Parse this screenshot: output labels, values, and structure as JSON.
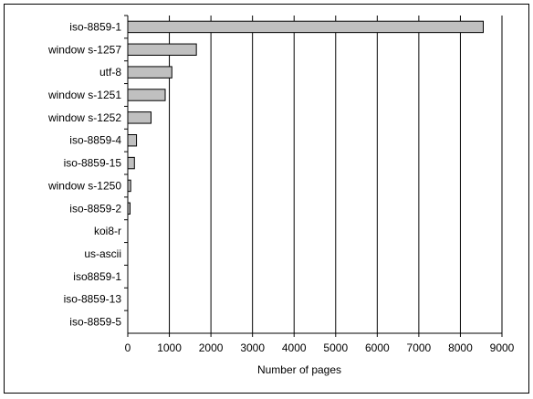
{
  "chart_data": {
    "type": "bar",
    "orientation": "horizontal",
    "categories": [
      "iso-8859-1",
      "window s-1257",
      "utf-8",
      "window s-1251",
      "window s-1252",
      "iso-8859-4",
      "iso-8859-15",
      "window s-1250",
      "iso-8859-2",
      "koi8-r",
      "us-ascii",
      "iso8859-1",
      "iso-8859-13",
      "iso-8859-5"
    ],
    "values": [
      8550,
      1650,
      1060,
      900,
      560,
      210,
      160,
      70,
      55,
      10,
      8,
      6,
      5,
      3
    ],
    "xlabel": "Number of pages",
    "ylabel": "",
    "xlim": [
      0,
      9000
    ],
    "xticks": [
      "0",
      "1000",
      "2000",
      "3000",
      "4000",
      "5000",
      "6000",
      "7000",
      "8000",
      "9000"
    ],
    "grid": true,
    "legend": "none",
    "bar_color": "#c0c0c0",
    "bar_edge_color": "#000000"
  }
}
